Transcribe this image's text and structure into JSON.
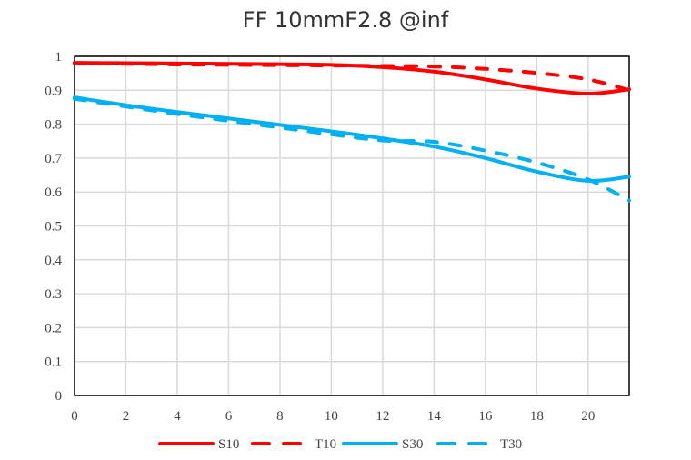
{
  "chart_data": {
    "type": "line",
    "title": "FF 10mmF2.8 @inf",
    "xlabel": "",
    "ylabel": "",
    "xlim": [
      0,
      21.6
    ],
    "ylim": [
      0,
      1
    ],
    "grid": true,
    "legend_position": "bottom",
    "x_ticks": [
      "0",
      "2",
      "4",
      "6",
      "8",
      "10",
      "12",
      "14",
      "16",
      "18",
      "20"
    ],
    "y_ticks": [
      "0",
      "0.1",
      "0.2",
      "0.3",
      "0.4",
      "0.5",
      "0.6",
      "0.7",
      "0.8",
      "0.9",
      "1"
    ],
    "x": [
      0,
      2,
      4,
      6,
      8,
      10,
      12,
      14,
      16,
      18,
      20,
      21.6
    ],
    "series": [
      {
        "name": "S10",
        "color": "#ff0000",
        "dash": false,
        "values": [
          0.981,
          0.98,
          0.979,
          0.978,
          0.977,
          0.975,
          0.968,
          0.955,
          0.932,
          0.905,
          0.89,
          0.903
        ]
      },
      {
        "name": "T10",
        "color": "#ff0000",
        "dash": true,
        "values": [
          0.98,
          0.978,
          0.976,
          0.975,
          0.974,
          0.973,
          0.972,
          0.97,
          0.963,
          0.951,
          0.932,
          0.9
        ]
      },
      {
        "name": "S30",
        "color": "#00b0f0",
        "dash": false,
        "values": [
          0.879,
          0.856,
          0.836,
          0.817,
          0.798,
          0.779,
          0.758,
          0.734,
          0.7,
          0.66,
          0.633,
          0.645
        ]
      },
      {
        "name": "T30",
        "color": "#00b0f0",
        "dash": true,
        "values": [
          0.875,
          0.852,
          0.83,
          0.81,
          0.79,
          0.77,
          0.752,
          0.748,
          0.722,
          0.687,
          0.637,
          0.575
        ]
      }
    ]
  }
}
